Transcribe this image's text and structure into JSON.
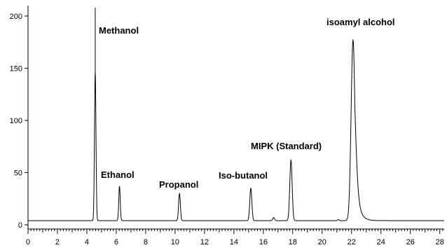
{
  "chart_data": {
    "type": "line",
    "title": "",
    "xlabel": "",
    "ylabel": "",
    "xlim": [
      0,
      28.3
    ],
    "ylim": [
      -4,
      210
    ],
    "x_ticks": [
      0,
      2,
      4,
      6,
      8,
      10,
      12,
      14,
      16,
      18,
      20,
      22,
      24,
      26,
      28
    ],
    "y_ticks": [
      0,
      50,
      100,
      150,
      200
    ],
    "x_minor_step": 0.2,
    "baseline": 4,
    "grid": false,
    "line_color": "#000000",
    "peaks": [
      {
        "label": "Methanol",
        "rt": 4.57,
        "height": 146,
        "spike": 208,
        "width": 0.05
      },
      {
        "label": "Ethanol",
        "rt": 6.22,
        "height": 37,
        "width": 0.05
      },
      {
        "label": "Propanol",
        "rt": 10.3,
        "height": 30,
        "width": 0.06
      },
      {
        "label": "Iso-butanol",
        "rt": 15.15,
        "height": 35,
        "width": 0.07
      },
      {
        "label": "",
        "rt": 16.7,
        "height": 7,
        "width": 0.06
      },
      {
        "label": "MIPK (Standard)",
        "rt": 17.88,
        "height": 62,
        "width": 0.08
      },
      {
        "label": "",
        "rt": 21.1,
        "height": 5,
        "width": 0.05
      },
      {
        "label": "isoamyl alcohol",
        "rt": 22.1,
        "height": 177,
        "width": 0.13,
        "tail": 0.55
      }
    ]
  }
}
